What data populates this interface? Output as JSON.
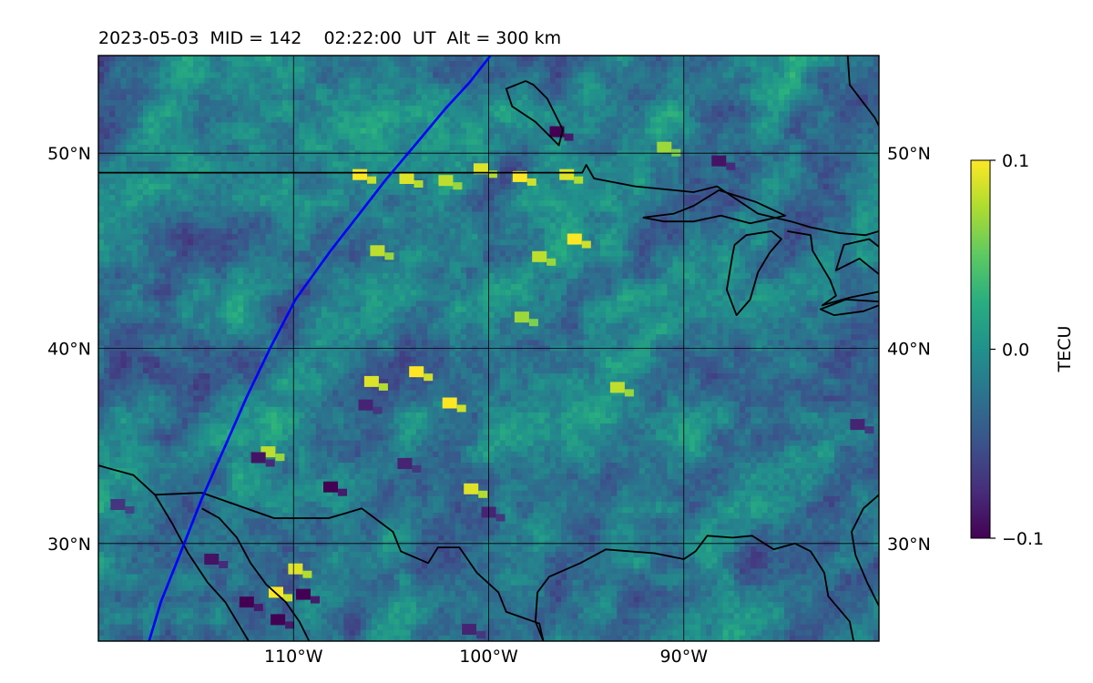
{
  "title": "2023-05-03  MID = 142    02:22:00  UT  Alt = 300 km",
  "map": {
    "lon_range": [
      -120,
      -80
    ],
    "lat_range": [
      25,
      55
    ],
    "lat_gridlines": [
      30,
      40,
      50
    ],
    "lon_gridlines": [
      -110,
      -100,
      -90
    ],
    "lat_tick_labels": [
      "30°N",
      "40°N",
      "50°N"
    ],
    "lon_tick_labels": [
      "110°W",
      "100°W",
      "90°W"
    ],
    "colormap": "viridis",
    "grid": true,
    "grid_color": "#000000",
    "coastline_color": "#000000",
    "track_color": "#0000ff",
    "hotspots": [
      {
        "lon": -106.6,
        "lat": 48.9,
        "v": 0.1
      },
      {
        "lon": -104.2,
        "lat": 48.7,
        "v": 0.09
      },
      {
        "lon": -102.2,
        "lat": 48.6,
        "v": 0.08
      },
      {
        "lon": -100.4,
        "lat": 49.2,
        "v": 0.09
      },
      {
        "lon": -98.4,
        "lat": 48.8,
        "v": 0.1
      },
      {
        "lon": -96.0,
        "lat": 48.9,
        "v": 0.09
      },
      {
        "lon": -95.6,
        "lat": 45.6,
        "v": 0.1
      },
      {
        "lon": -97.4,
        "lat": 44.7,
        "v": 0.08
      },
      {
        "lon": -98.3,
        "lat": 41.6,
        "v": 0.07
      },
      {
        "lon": -103.7,
        "lat": 38.8,
        "v": 0.1
      },
      {
        "lon": -102.0,
        "lat": 37.2,
        "v": 0.1
      },
      {
        "lon": -106.0,
        "lat": 38.3,
        "v": 0.09
      },
      {
        "lon": -93.4,
        "lat": 38.0,
        "v": 0.08
      },
      {
        "lon": -100.9,
        "lat": 32.8,
        "v": 0.09
      },
      {
        "lon": -110.9,
        "lat": 27.5,
        "v": 0.1
      },
      {
        "lon": -109.9,
        "lat": 28.7,
        "v": 0.09
      },
      {
        "lon": -111.3,
        "lat": 34.7,
        "v": 0.08
      },
      {
        "lon": -105.7,
        "lat": 45.0,
        "v": 0.08
      },
      {
        "lon": -91.0,
        "lat": 50.3,
        "v": 0.07
      }
    ],
    "coldspots": [
      {
        "lon": -112.4,
        "lat": 27.0,
        "v": -0.1
      },
      {
        "lon": -110.8,
        "lat": 26.1,
        "v": -0.1
      },
      {
        "lon": -109.5,
        "lat": 27.4,
        "v": -0.1
      },
      {
        "lon": -114.2,
        "lat": 29.2,
        "v": -0.09
      },
      {
        "lon": -108.1,
        "lat": 32.9,
        "v": -0.1
      },
      {
        "lon": -111.8,
        "lat": 34.4,
        "v": -0.09
      },
      {
        "lon": -104.3,
        "lat": 34.1,
        "v": -0.08
      },
      {
        "lon": -96.5,
        "lat": 51.1,
        "v": -0.1
      },
      {
        "lon": -88.2,
        "lat": 49.6,
        "v": -0.09
      },
      {
        "lon": -81.1,
        "lat": 36.1,
        "v": -0.08
      },
      {
        "lon": -100.0,
        "lat": 31.6,
        "v": -0.08
      },
      {
        "lon": -106.3,
        "lat": 37.1,
        "v": -0.08
      },
      {
        "lon": -119.0,
        "lat": 32.0,
        "v": -0.07
      },
      {
        "lon": -101.0,
        "lat": 25.6,
        "v": -0.08
      }
    ],
    "satellite_track": [
      [
        -117.4,
        25.0
      ],
      [
        -116.8,
        27.0
      ],
      [
        -115.8,
        29.5
      ],
      [
        -114.7,
        32.3
      ],
      [
        -113.5,
        35.0
      ],
      [
        -112.4,
        37.5
      ],
      [
        -111.2,
        40.0
      ],
      [
        -109.9,
        42.5
      ],
      [
        -108.1,
        45.0
      ],
      [
        -106.7,
        46.8
      ],
      [
        -105.3,
        48.6
      ],
      [
        -103.7,
        50.5
      ],
      [
        -102.2,
        52.3
      ],
      [
        -101.0,
        53.6
      ],
      [
        -99.9,
        55.0
      ]
    ],
    "coastlines": [
      [
        [
          -120.0,
          34.0
        ],
        [
          -118.2,
          33.5
        ],
        [
          -117.1,
          32.5
        ],
        [
          -116.2,
          31.0
        ],
        [
          -115.4,
          29.5
        ],
        [
          -114.4,
          28.0
        ],
        [
          -113.5,
          27.0
        ],
        [
          -112.3,
          25.0
        ]
      ],
      [
        [
          -114.7,
          31.8
        ],
        [
          -113.8,
          31.3
        ],
        [
          -112.9,
          30.3
        ],
        [
          -112.2,
          29.0
        ],
        [
          -111.4,
          27.9
        ],
        [
          -110.4,
          27.0
        ],
        [
          -109.7,
          26.0
        ],
        [
          -109.2,
          25.0
        ]
      ],
      [
        [
          -117.1,
          32.5
        ],
        [
          -114.7,
          32.6
        ],
        [
          -111.0,
          31.3
        ],
        [
          -108.2,
          31.3
        ],
        [
          -106.5,
          31.8
        ],
        [
          -104.9,
          30.6
        ],
        [
          -104.5,
          29.6
        ],
        [
          -103.1,
          29.0
        ],
        [
          -102.6,
          29.8
        ],
        [
          -101.5,
          29.8
        ],
        [
          -100.6,
          28.5
        ],
        [
          -99.5,
          27.5
        ],
        [
          -99.1,
          26.5
        ],
        [
          -97.4,
          25.9
        ],
        [
          -97.2,
          25.0
        ]
      ],
      [
        [
          -97.2,
          25.0
        ],
        [
          -97.6,
          26.0
        ],
        [
          -97.5,
          27.5
        ],
        [
          -96.9,
          28.3
        ],
        [
          -95.3,
          29.0
        ],
        [
          -94.0,
          29.7
        ],
        [
          -91.5,
          29.5
        ],
        [
          -90.0,
          29.2
        ],
        [
          -89.4,
          29.6
        ],
        [
          -88.8,
          30.4
        ],
        [
          -87.5,
          30.3
        ],
        [
          -86.5,
          30.4
        ],
        [
          -85.4,
          29.7
        ],
        [
          -84.3,
          30.0
        ],
        [
          -83.5,
          29.6
        ],
        [
          -82.8,
          28.5
        ],
        [
          -82.6,
          27.3
        ],
        [
          -81.5,
          26.0
        ],
        [
          -81.3,
          25.0
        ]
      ],
      [
        [
          -80.0,
          32.5
        ],
        [
          -80.8,
          31.8
        ],
        [
          -81.4,
          30.6
        ],
        [
          -81.2,
          29.4
        ],
        [
          -80.6,
          28.0
        ],
        [
          -80.0,
          26.8
        ]
      ],
      [
        [
          -120.0,
          49.0
        ],
        [
          -95.2,
          49.0
        ],
        [
          -95.0,
          49.4
        ],
        [
          -94.6,
          48.7
        ],
        [
          -92.5,
          48.3
        ],
        [
          -89.5,
          48.0
        ],
        [
          -88.3,
          48.3
        ],
        [
          -86.2,
          46.9
        ],
        [
          -84.5,
          46.5
        ],
        [
          -83.5,
          46.2
        ],
        [
          -82.0,
          45.9
        ],
        [
          -80.7,
          45.8
        ],
        [
          -80.0,
          46.0
        ]
      ],
      [
        [
          -92.1,
          46.7
        ],
        [
          -90.5,
          46.9
        ],
        [
          -89.5,
          47.3
        ],
        [
          -88.2,
          48.1
        ],
        [
          -86.3,
          47.5
        ],
        [
          -84.8,
          46.8
        ],
        [
          -86.6,
          46.4
        ],
        [
          -88.1,
          46.8
        ],
        [
          -89.5,
          46.5
        ],
        [
          -91.0,
          46.5
        ],
        [
          -92.1,
          46.7
        ]
      ],
      [
        [
          -87.5,
          44.8
        ],
        [
          -87.8,
          43.0
        ],
        [
          -87.3,
          41.7
        ],
        [
          -86.6,
          42.5
        ],
        [
          -86.2,
          43.9
        ],
        [
          -85.6,
          44.9
        ],
        [
          -85.0,
          45.6
        ],
        [
          -85.5,
          46.0
        ],
        [
          -86.8,
          45.8
        ],
        [
          -87.4,
          45.3
        ],
        [
          -87.5,
          44.8
        ]
      ],
      [
        [
          -84.7,
          46.0
        ],
        [
          -83.5,
          45.8
        ],
        [
          -83.4,
          45.0
        ],
        [
          -82.5,
          43.5
        ],
        [
          -82.2,
          42.7
        ],
        [
          -82.9,
          42.2
        ],
        [
          -81.5,
          42.6
        ],
        [
          -80.0,
          42.9
        ]
      ],
      [
        [
          -80.0,
          43.8
        ],
        [
          -81.0,
          44.6
        ],
        [
          -82.2,
          44.0
        ],
        [
          -81.8,
          45.3
        ],
        [
          -80.5,
          45.6
        ],
        [
          -80.0,
          45.2
        ]
      ],
      [
        [
          -80.0,
          42.4
        ],
        [
          -81.7,
          42.5
        ],
        [
          -83.0,
          42.0
        ],
        [
          -82.3,
          41.7
        ],
        [
          -80.8,
          41.9
        ],
        [
          -80.0,
          42.2
        ]
      ],
      [
        [
          -98.1,
          53.7
        ],
        [
          -99.1,
          53.3
        ],
        [
          -98.8,
          52.4
        ],
        [
          -97.6,
          51.6
        ],
        [
          -96.8,
          50.8
        ],
        [
          -96.4,
          50.4
        ],
        [
          -96.2,
          51.2
        ],
        [
          -97.0,
          52.8
        ],
        [
          -97.7,
          53.5
        ],
        [
          -98.1,
          53.7
        ]
      ],
      [
        [
          -81.6,
          55.0
        ],
        [
          -81.5,
          53.5
        ],
        [
          -80.2,
          51.8
        ],
        [
          -80.0,
          51.4
        ]
      ]
    ]
  },
  "colorbar": {
    "label": "TECU",
    "ticks": [
      {
        "value": 0.1,
        "label": "0.1"
      },
      {
        "value": 0.0,
        "label": "0.0"
      },
      {
        "value": -0.1,
        "label": "−0.1"
      }
    ],
    "range": [
      -0.1,
      0.1
    ]
  }
}
